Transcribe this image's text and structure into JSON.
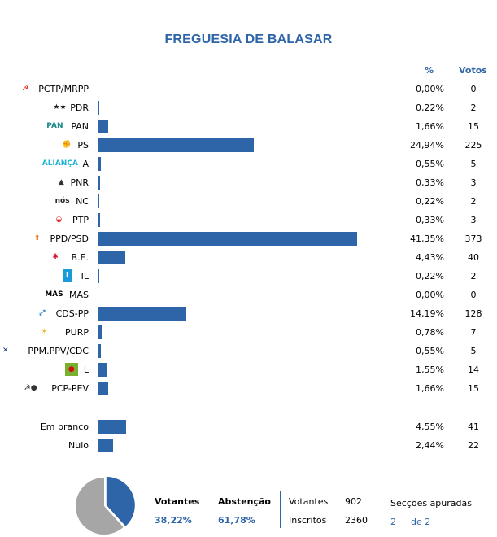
{
  "title": "FREGUESIA DE BALASAR",
  "headers": {
    "pct": "%",
    "votes": "Votos"
  },
  "colors": {
    "accent": "#2e64a8",
    "pie_other": "#a6a6a6"
  },
  "parties": [
    {
      "name": "PCTP/MRPP",
      "pct": "0,00%",
      "pct_value": 0.0,
      "votes": "0",
      "logo": "hammer-sickle-icon"
    },
    {
      "name": "PDR",
      "pct": "0,22%",
      "pct_value": 0.22,
      "votes": "2",
      "logo": "stars-icon"
    },
    {
      "name": "PAN",
      "pct": "1,66%",
      "pct_value": 1.66,
      "votes": "15",
      "logo": "pan-logo"
    },
    {
      "name": "PS",
      "pct": "24,94%",
      "pct_value": 24.94,
      "votes": "225",
      "logo": "fist-rose-icon"
    },
    {
      "name": "A",
      "pct": "0,55%",
      "pct_value": 0.55,
      "votes": "5",
      "logo": "alianca-logo"
    },
    {
      "name": "PNR",
      "pct": "0,33%",
      "pct_value": 0.33,
      "votes": "3",
      "logo": "flame-icon"
    },
    {
      "name": "NC",
      "pct": "0,22%",
      "pct_value": 0.22,
      "votes": "2",
      "logo": "nos-logo"
    },
    {
      "name": "PTP",
      "pct": "0,33%",
      "pct_value": 0.33,
      "votes": "3",
      "logo": "ptp-logo"
    },
    {
      "name": "PPD/PSD",
      "pct": "41,35%",
      "pct_value": 41.35,
      "votes": "373",
      "logo": "arrow-up-icon"
    },
    {
      "name": "B.E.",
      "pct": "4,43%",
      "pct_value": 4.43,
      "votes": "40",
      "logo": "star-person-icon"
    },
    {
      "name": "IL",
      "pct": "0,22%",
      "pct_value": 0.22,
      "votes": "2",
      "logo": "info-icon"
    },
    {
      "name": "MAS",
      "pct": "0,00%",
      "pct_value": 0.0,
      "votes": "0",
      "logo": "mas-logo"
    },
    {
      "name": "CDS-PP",
      "pct": "14,19%",
      "pct_value": 14.19,
      "votes": "128",
      "logo": "cds-logo"
    },
    {
      "name": "PURP",
      "pct": "0,78%",
      "pct_value": 0.78,
      "votes": "7",
      "logo": "sun-icon"
    },
    {
      "name": "PPM.PPV/CDC",
      "pct": "0,55%",
      "pct_value": 0.55,
      "votes": "5",
      "logo": "ppm-logo"
    },
    {
      "name": "L",
      "pct": "1,55%",
      "pct_value": 1.55,
      "votes": "14",
      "logo": "poppy-icon"
    },
    {
      "name": "PCP-PEV",
      "pct": "1,66%",
      "pct_value": 1.66,
      "votes": "15",
      "logo": "pcp-pev-logo"
    }
  ],
  "others": [
    {
      "name": "Em branco",
      "pct": "4,55%",
      "pct_value": 4.55,
      "votes": "41"
    },
    {
      "name": "Nulo",
      "pct": "2,44%",
      "pct_value": 2.44,
      "votes": "22"
    }
  ],
  "summary": {
    "votantes_label": "Votantes",
    "votantes_pct": "38,22%",
    "votantes_value": 38.22,
    "abstencao_label": "Abstenção",
    "abstencao_pct": "61,78%",
    "votantes_count_label": "Votantes",
    "votantes_count": "902",
    "inscritos_label": "Inscritos",
    "inscritos_count": "2360",
    "seccoes_label": "Secções apuradas",
    "seccoes_done": "2",
    "seccoes_total": "de 2"
  }
}
